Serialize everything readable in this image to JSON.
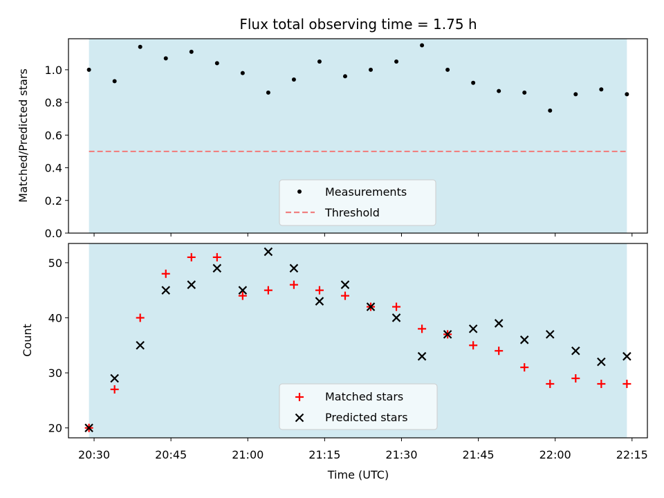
{
  "chart_data": [
    {
      "type": "scatter",
      "title": "Flux total observing time = 1.75 h",
      "xlabel": "",
      "ylabel": "Matched/Predicted stars",
      "ylim": [
        0.0,
        1.19
      ],
      "yticks": [
        "0.0",
        "0.2",
        "0.4",
        "0.6",
        "0.8",
        "1.0"
      ],
      "x": [
        "20:29",
        "20:34",
        "20:39",
        "20:44",
        "20:49",
        "20:54",
        "20:59",
        "21:04",
        "21:09",
        "21:14",
        "21:19",
        "21:24",
        "21:29",
        "21:34",
        "21:39",
        "21:44",
        "21:49",
        "21:54",
        "21:59",
        "22:04",
        "22:09",
        "22:14"
      ],
      "series": [
        {
          "name": "Measurements",
          "values": [
            1.0,
            0.93,
            1.14,
            1.07,
            1.11,
            1.04,
            0.98,
            0.86,
            0.94,
            1.05,
            0.96,
            1.0,
            1.05,
            1.15,
            1.0,
            0.92,
            0.87,
            0.86,
            0.75,
            0.85,
            0.88,
            0.85
          ]
        }
      ],
      "threshold": {
        "name": "Threshold",
        "value": 0.5,
        "color": "#f08080"
      },
      "shaded_range": [
        "20:29",
        "22:14"
      ],
      "shade_color": "#add8e6",
      "legend": "lower-center",
      "grid": false
    },
    {
      "type": "scatter",
      "title": "",
      "xlabel": "Time (UTC)",
      "ylabel": "Count",
      "ylim": [
        18.2,
        53.5
      ],
      "yticks": [
        "20",
        "30",
        "40",
        "50"
      ],
      "xticks": [
        "20:30",
        "20:45",
        "21:00",
        "21:15",
        "21:30",
        "21:45",
        "22:00",
        "22:15"
      ],
      "x": [
        "20:29",
        "20:34",
        "20:39",
        "20:44",
        "20:49",
        "20:54",
        "20:59",
        "21:04",
        "21:09",
        "21:14",
        "21:19",
        "21:24",
        "21:29",
        "21:34",
        "21:39",
        "21:44",
        "21:49",
        "21:54",
        "21:59",
        "22:04",
        "22:09",
        "22:14"
      ],
      "series": [
        {
          "name": "Matched stars",
          "marker": "plus",
          "color": "#ff0000",
          "values": [
            20,
            27,
            40,
            48,
            51,
            51,
            44,
            45,
            46,
            45,
            44,
            42,
            42,
            38,
            37,
            35,
            34,
            31,
            28,
            29,
            28,
            28
          ]
        },
        {
          "name": "Predicted stars",
          "marker": "cross",
          "color": "#000000",
          "values": [
            20,
            29,
            35,
            45,
            46,
            49,
            45,
            52,
            49,
            43,
            46,
            42,
            40,
            33,
            37,
            38,
            39,
            36,
            37,
            34,
            32,
            33
          ]
        }
      ],
      "shaded_range": [
        "20:29",
        "22:14"
      ],
      "shade_color": "#add8e6",
      "legend": "lower-center",
      "grid": false
    }
  ]
}
